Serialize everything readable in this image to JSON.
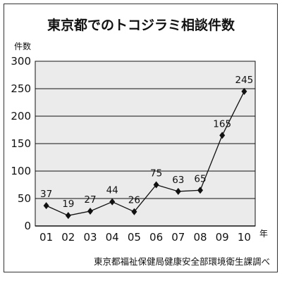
{
  "chart_data": {
    "type": "line",
    "title": "東京都でのトコジラミ相談件数",
    "ylabel": "件数",
    "xlabel": "年",
    "categories": [
      "01",
      "02",
      "03",
      "04",
      "05",
      "06",
      "07",
      "08",
      "09",
      "10"
    ],
    "series": [
      {
        "values": [
          37,
          19,
          27,
          44,
          26,
          75,
          63,
          65,
          165,
          245
        ]
      }
    ],
    "ylim": [
      0,
      300
    ],
    "yticks": [
      0,
      50,
      100,
      150,
      200,
      250,
      300
    ],
    "grid": true,
    "legend": "none",
    "marker": "diamond",
    "source": "東京都福祉保健局健康安全部環境衛生課調べ"
  },
  "colors": {
    "plot_background": "#ebebeb",
    "gridline": "#111111",
    "line": "#111111",
    "marker": "#111111"
  }
}
